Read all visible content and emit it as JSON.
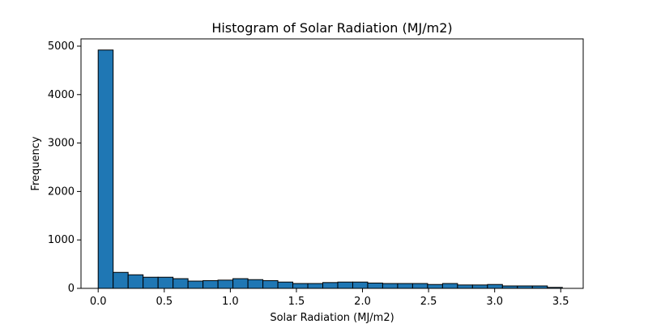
{
  "chart_data": {
    "type": "bar",
    "title": "Histogram of Solar Radiation (MJ/m2)",
    "xlabel": "Solar Radiation (MJ/m2)",
    "ylabel": "Frequency",
    "xlim": [
      -0.13,
      3.67
    ],
    "ylim": [
      0,
      5150
    ],
    "x_ticks": [
      "0.0",
      "0.5",
      "1.0",
      "1.5",
      "2.0",
      "2.5",
      "3.0",
      "3.5"
    ],
    "x_tick_values": [
      0.0,
      0.5,
      1.0,
      1.5,
      2.0,
      2.5,
      3.0,
      3.5
    ],
    "y_ticks": [
      "0",
      "1000",
      "2000",
      "3000",
      "4000",
      "5000"
    ],
    "y_tick_values": [
      0,
      1000,
      2000,
      3000,
      4000,
      5000
    ],
    "bin_start": 0.0,
    "bin_width": 0.1133,
    "values": [
      4920,
      330,
      280,
      230,
      230,
      200,
      150,
      160,
      170,
      200,
      180,
      160,
      130,
      100,
      100,
      120,
      130,
      130,
      110,
      100,
      100,
      100,
      80,
      100,
      70,
      70,
      80,
      50,
      50,
      50,
      20
    ],
    "bar_color": "#1f77b4",
    "edge_color": "#000000",
    "grid": false,
    "legend": false
  }
}
